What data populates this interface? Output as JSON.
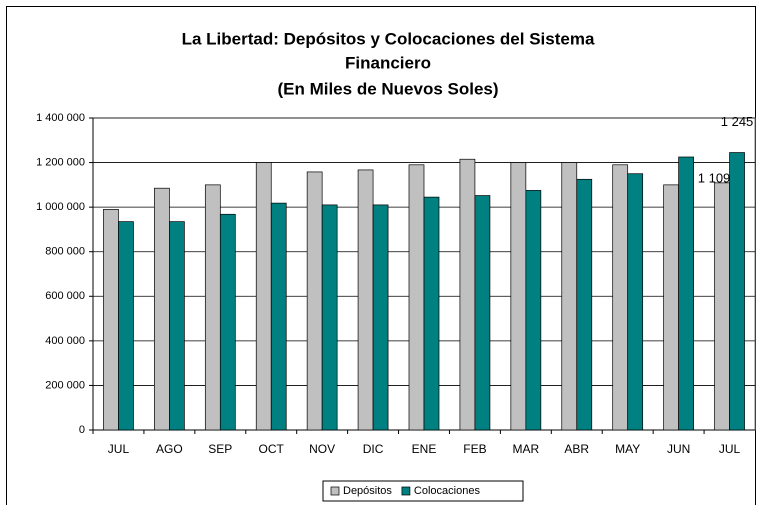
{
  "chart_data": {
    "type": "bar",
    "title": [
      "La Libertad: Depósitos y Colocaciones del Sistema",
      "Financiero",
      "(En Miles de Nuevos Soles)"
    ],
    "categories": [
      "JUL",
      "AGO",
      "SEP",
      "OCT",
      "NOV",
      "DIC",
      "ENE",
      "FEB",
      "MAR",
      "ABR",
      "MAY",
      "JUN",
      "JUL"
    ],
    "series": [
      {
        "name": "Depósitos",
        "color": "#c0c0c0",
        "values": [
          990000,
          1085000,
          1100000,
          1200000,
          1158000,
          1167000,
          1190000,
          1215000,
          1200000,
          1200000,
          1190000,
          1100000,
          1109000
        ],
        "value_labels": [
          null,
          null,
          null,
          null,
          null,
          null,
          null,
          null,
          null,
          null,
          null,
          null,
          "1 109"
        ]
      },
      {
        "name": "Colocaciones",
        "color": "#008080",
        "values": [
          935000,
          935000,
          968000,
          1018000,
          1010000,
          1010000,
          1045000,
          1052000,
          1075000,
          1125000,
          1150000,
          1225000,
          1245000
        ],
        "value_labels": [
          null,
          null,
          null,
          null,
          null,
          null,
          null,
          null,
          null,
          null,
          null,
          null,
          "1 245"
        ]
      }
    ],
    "ylim": [
      0,
      1400000
    ],
    "yticks": [
      0,
      {
        "value": 200000,
        "label": "200 000"
      },
      {
        "value": 400000,
        "label": "400 000"
      },
      {
        "value": 600000,
        "label": "600 000"
      },
      {
        "value": 800000,
        "label": "800 000"
      },
      {
        "value": 1000000,
        "label": "1 000 000"
      },
      {
        "value": 1200000,
        "label": "1 200 000"
      },
      {
        "value": 1400000,
        "label": "1 400 000"
      }
    ],
    "grid": true,
    "legend": "bottom"
  }
}
